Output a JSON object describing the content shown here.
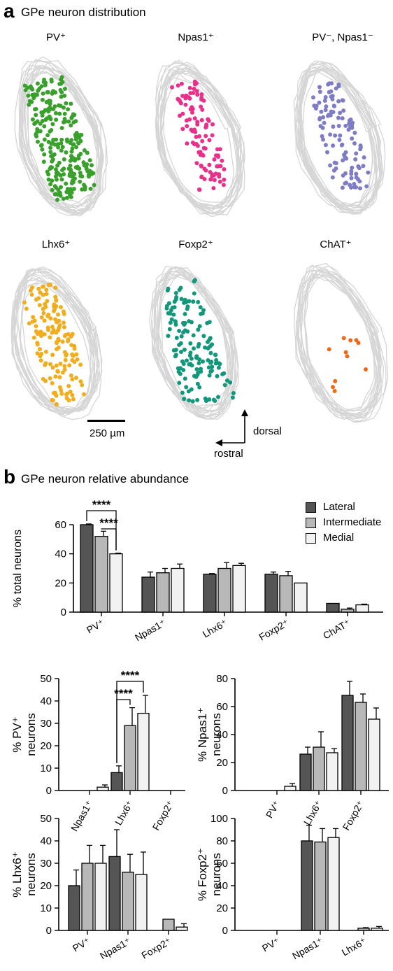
{
  "panel_a": {
    "letter": "a",
    "title": "GPe neuron distribution",
    "maps": [
      {
        "label": "PV⁺",
        "dot_color": "#3aa02c",
        "dot_count": 260,
        "spread": [
          0.05,
          0.95,
          0.05,
          0.95
        ]
      },
      {
        "label": "Npas1⁺",
        "dot_color": "#e8308a",
        "dot_count": 105,
        "spread": [
          0.25,
          0.88,
          0.07,
          0.9
        ]
      },
      {
        "label": "PV⁻, Npas1⁻",
        "dot_color": "#7e7cc4",
        "dot_count": 110,
        "spread": [
          0.2,
          0.9,
          0.07,
          0.9
        ]
      },
      {
        "label": "Lhx6⁺",
        "dot_color": "#f0ad1d",
        "dot_count": 150,
        "spread": [
          0.1,
          0.92,
          0.06,
          0.96
        ]
      },
      {
        "label": "Foxp2⁺",
        "dot_color": "#13977a",
        "dot_count": 145,
        "spread": [
          0.05,
          0.97,
          0.06,
          0.97
        ]
      },
      {
        "label": "ChAT⁺",
        "dot_color": "#ed6a1c",
        "dot_count": 11,
        "spread": [
          0.15,
          0.95,
          0.4,
          0.95
        ]
      }
    ],
    "scale_bar_label": "250 µm",
    "axis_dorsal": "dorsal",
    "axis_rostral": "rostral"
  },
  "panel_b": {
    "letter": "b",
    "title": "GPe neuron relative abundance",
    "legend": [
      {
        "label": "Lateral",
        "color": "#555555"
      },
      {
        "label": "Intermediate",
        "color": "#b8b8b8"
      },
      {
        "label": "Medial",
        "color": "#f2f2f2"
      }
    ],
    "significance_label": "****"
  },
  "chart_data": [
    {
      "type": "bar",
      "ylabel": "% total neurons",
      "ylim": [
        0,
        60
      ],
      "yticks": [
        "0",
        "20",
        "40",
        "60"
      ],
      "categories": [
        "PV⁺",
        "Npas1⁺",
        "Lhx6⁺",
        "Foxp2⁺",
        "ChAT⁺"
      ],
      "series": [
        {
          "name": "Lateral",
          "values": [
            60,
            24,
            26,
            26,
            6
          ],
          "errors": [
            0.5,
            3.5,
            0.5,
            1.5,
            0
          ]
        },
        {
          "name": "Intermediate",
          "values": [
            52,
            27,
            30,
            25,
            2
          ],
          "errors": [
            3.5,
            3,
            4,
            3,
            0.8
          ]
        },
        {
          "name": "Medial",
          "values": [
            40,
            30,
            32,
            20,
            5
          ],
          "errors": [
            0.5,
            3,
            1.5,
            0,
            0.5
          ]
        }
      ],
      "significance": [
        {
          "from": [
            0,
            0
          ],
          "to": [
            0,
            2
          ],
          "label": "****"
        },
        {
          "from": [
            0,
            1
          ],
          "to": [
            0,
            2
          ],
          "label": "****"
        }
      ]
    },
    {
      "type": "bar",
      "ylabel": "% PV⁺",
      "ylabel2": "neurons",
      "ylim": [
        0,
        50
      ],
      "yticks": [
        "0",
        "10",
        "20",
        "30",
        "40",
        "50"
      ],
      "categories": [
        "Npas1⁺",
        "Lhx6⁺",
        "Foxp2⁺"
      ],
      "series": [
        {
          "name": "Lateral",
          "values": [
            0,
            8,
            0
          ],
          "errors": [
            0,
            3,
            0
          ]
        },
        {
          "name": "Intermediate",
          "values": [
            0,
            29,
            0
          ],
          "errors": [
            0,
            8,
            0
          ]
        },
        {
          "name": "Medial",
          "values": [
            1.5,
            34.5,
            0
          ],
          "errors": [
            1,
            8,
            0
          ]
        }
      ],
      "significance": [
        {
          "from": [
            1,
            0
          ],
          "to": [
            1,
            1
          ],
          "label": "****"
        },
        {
          "from": [
            1,
            0
          ],
          "to": [
            1,
            2
          ],
          "label": "****"
        }
      ]
    },
    {
      "type": "bar",
      "ylabel": "% Npas1⁺",
      "ylabel2": "neurons",
      "ylim": [
        0,
        80
      ],
      "yticks": [
        "0",
        "20",
        "40",
        "60",
        "80"
      ],
      "categories": [
        "PV⁺",
        "Lhx6⁺",
        "Foxp2⁺"
      ],
      "series": [
        {
          "name": "Lateral",
          "values": [
            0,
            26,
            68
          ],
          "errors": [
            0,
            5,
            10
          ]
        },
        {
          "name": "Intermediate",
          "values": [
            0,
            31,
            63
          ],
          "errors": [
            0,
            11,
            6
          ]
        },
        {
          "name": "Medial",
          "values": [
            3,
            27,
            51
          ],
          "errors": [
            2,
            3,
            8
          ]
        }
      ],
      "significance": []
    },
    {
      "type": "bar",
      "ylabel": "% Lhx6⁺",
      "ylabel2": "neurons",
      "ylim": [
        0,
        50
      ],
      "yticks": [
        "0",
        "10",
        "20",
        "30",
        "40",
        "50"
      ],
      "categories": [
        "PV⁺",
        "Npas1⁺",
        "Foxp2⁺"
      ],
      "series": [
        {
          "name": "Lateral",
          "values": [
            20,
            33,
            0
          ],
          "errors": [
            7,
            12,
            0
          ]
        },
        {
          "name": "Intermediate",
          "values": [
            30,
            26,
            5
          ],
          "errors": [
            8,
            8,
            0
          ]
        },
        {
          "name": "Medial",
          "values": [
            30,
            25,
            1.5
          ],
          "errors": [
            8,
            10,
            1.5
          ]
        }
      ],
      "significance": []
    },
    {
      "type": "bar",
      "ylabel": "% Foxp2⁺",
      "ylabel2": "neurons",
      "ylim": [
        0,
        100
      ],
      "yticks": [
        "0",
        "20",
        "40",
        "60",
        "80",
        "100"
      ],
      "categories": [
        "PV⁺",
        "Npas1⁺",
        "Lhx6⁺"
      ],
      "series": [
        {
          "name": "Lateral",
          "values": [
            0,
            80,
            0
          ],
          "errors": [
            0,
            14,
            0
          ]
        },
        {
          "name": "Intermediate",
          "values": [
            0,
            79,
            2
          ],
          "errors": [
            0,
            12,
            0.5
          ]
        },
        {
          "name": "Medial",
          "values": [
            0,
            83,
            2
          ],
          "errors": [
            0,
            8,
            1.5
          ]
        }
      ],
      "significance": []
    }
  ]
}
